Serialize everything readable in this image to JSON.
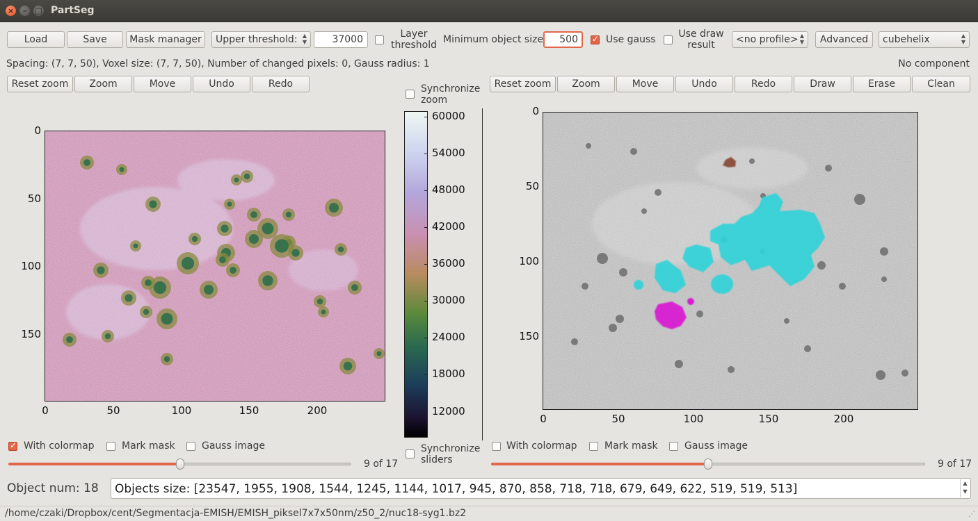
{
  "window": {
    "title": "PartSeg"
  },
  "toolbar": {
    "load": "Load",
    "save": "Save",
    "mask_manager": "Mask manager",
    "threshold_type": "Upper threshold:",
    "threshold_value": "37000",
    "layer_threshold": "Layer threshold",
    "layer_threshold_checked": false,
    "min_size_label": "Minimum object size:",
    "min_size_value": "500",
    "use_gauss": "Use gauss",
    "use_gauss_checked": true,
    "use_draw": "Use draw result",
    "use_draw_checked": false,
    "profile": "<no profile>",
    "advanced": "Advanced",
    "colormap": "cubehelix"
  },
  "info": {
    "left": "Spacing: (7, 7, 50), Voxel size: (7, 7, 50),  Number of changed pixels: 0, Gauss radius: 1",
    "right": "No component"
  },
  "left_tools": {
    "reset_zoom": "Reset zoom",
    "zoom": "Zoom",
    "move": "Move",
    "undo": "Undo",
    "redo": "Redo"
  },
  "right_tools": {
    "reset_zoom": "Reset zoom",
    "zoom": "Zoom",
    "move": "Move",
    "undo": "Undo",
    "redo": "Redo",
    "draw": "Draw",
    "erase": "Erase",
    "clean": "Clean"
  },
  "sync": {
    "zoom": "Synchronize zoom",
    "sliders": "Synchronize sliders",
    "zoom_checked": false,
    "sliders_checked": false
  },
  "left_plot": {
    "xticks": [
      "0",
      "50",
      "100",
      "150",
      "200"
    ],
    "yticks": [
      "0",
      "50",
      "100",
      "150"
    ]
  },
  "colorbar": {
    "ticks": [
      "60000",
      "54000",
      "48000",
      "42000",
      "36000",
      "30000",
      "24000",
      "18000",
      "12000"
    ]
  },
  "right_plot": {
    "xticks": [
      "0",
      "50",
      "100",
      "150",
      "200"
    ],
    "yticks": [
      "0",
      "50",
      "100",
      "150"
    ]
  },
  "left_options": {
    "with_colormap": "With colormap",
    "with_colormap_checked": true,
    "mark_mask": "Mark mask",
    "mark_mask_checked": false,
    "gauss_image": "Gauss image",
    "gauss_image_checked": false,
    "slider_label": "9 of 17",
    "slider_fraction": 0.5
  },
  "right_options": {
    "with_colormap": "With colormap",
    "with_colormap_checked": false,
    "mark_mask": "Mark mask",
    "mark_mask_checked": false,
    "gauss_image": "Gauss image",
    "gauss_image_checked": false,
    "slider_label": "9 of 17",
    "slider_fraction": 0.5
  },
  "objects": {
    "num_label": "Object num: 18",
    "sizes": "Objects size: [23547, 1955, 1908, 1544, 1245, 1144, 1017, 945, 870, 858, 718, 718, 679, 649, 622, 519, 519, 513]"
  },
  "status": {
    "path": "/home/czaki/Dropbox/cent/Segmentacja-EMISH/EMISH_piksel7x7x50nm/z50_2/nuc18-syg1.bz2"
  },
  "colors": {
    "accent": "#e2674a",
    "segment_cyan": "#2fd3d8",
    "segment_magenta": "#d81ed2",
    "segment_brown": "#8a4b3a"
  }
}
